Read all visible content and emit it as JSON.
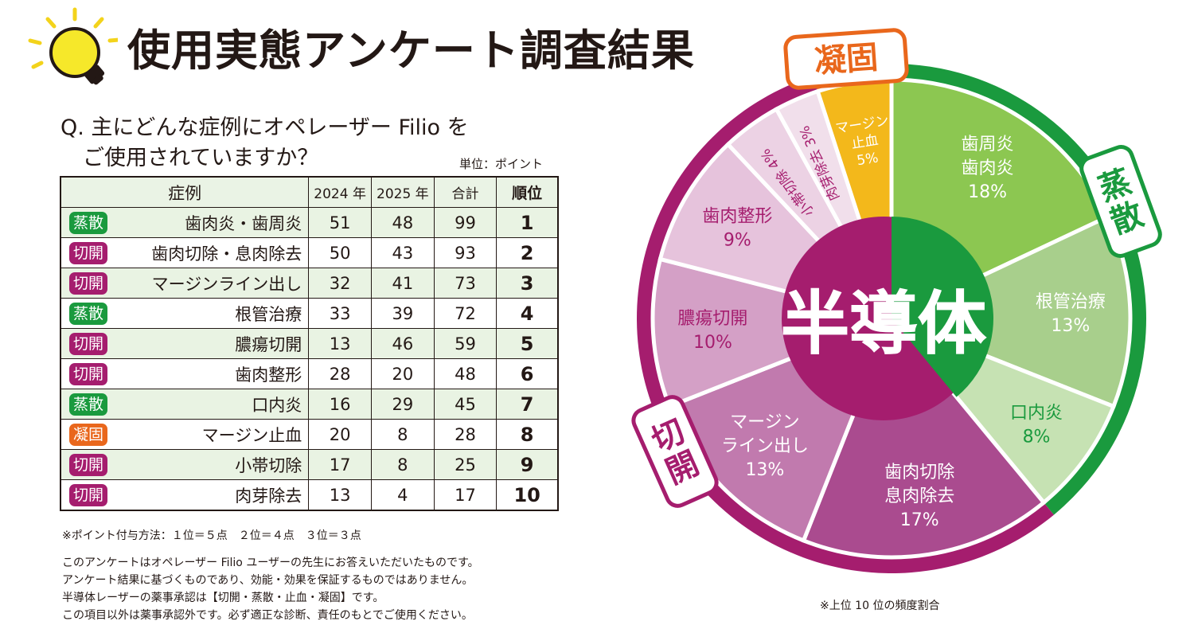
{
  "title": "使用実態アンケート調査結果",
  "question": [
    "Q. 主にどんな症例にオペレーザー Filio を",
    "ご使用されていますか？"
  ],
  "unit": "単位：ポイント",
  "table": {
    "headers": [
      "症例",
      "2024 年",
      "2025 年",
      "合計",
      "順位"
    ],
    "rows": [
      {
        "badge": "蒸散",
        "case": "歯肉炎・歯周炎",
        "y2024": "51",
        "y2025": "48",
        "total": "99",
        "rank": "1"
      },
      {
        "badge": "切開",
        "case": "歯肉切除・息肉除去",
        "y2024": "50",
        "y2025": "43",
        "total": "93",
        "rank": "2"
      },
      {
        "badge": "切開",
        "case": "マージンライン出し",
        "y2024": "32",
        "y2025": "41",
        "total": "73",
        "rank": "3"
      },
      {
        "badge": "蒸散",
        "case": "根管治療",
        "y2024": "33",
        "y2025": "39",
        "total": "72",
        "rank": "4"
      },
      {
        "badge": "切開",
        "case": "膿瘍切開",
        "y2024": "13",
        "y2025": "46",
        "total": "59",
        "rank": "5"
      },
      {
        "badge": "切開",
        "case": "歯肉整形",
        "y2024": "28",
        "y2025": "20",
        "total": "48",
        "rank": "6"
      },
      {
        "badge": "蒸散",
        "case": "口内炎",
        "y2024": "16",
        "y2025": "29",
        "total": "45",
        "rank": "7"
      },
      {
        "badge": "凝固",
        "case": "マージン止血",
        "y2024": "20",
        "y2025": "8",
        "total": "28",
        "rank": "8"
      },
      {
        "badge": "切開",
        "case": "小帯切除",
        "y2024": "17",
        "y2025": "8",
        "total": "25",
        "rank": "9"
      },
      {
        "badge": "切開",
        "case": "肉芽除去",
        "y2024": "13",
        "y2025": "4",
        "total": "17",
        "rank": "10"
      }
    ]
  },
  "note": "※ポイント付与方法：１位＝５点　２位＝４点　３位＝３点",
  "disclaimer": [
    "このアンケートはオペレーザー Filio ユーザーの先生にお答えいただいたものです。",
    "アンケート結果に基づくものであり、効能・効果を保証するものではありません。",
    "半導体レーザーの薬事承認は【切開・蒸散・止血・凝固】です。",
    "この項目以外は薬事承認外です。必ず適正な診断、責任のもとでご使用ください。"
  ],
  "footnote": "※上位 10 位の頻度割合",
  "colors": {
    "蒸散": "#1a9a3e",
    "切開": "#a51d6e",
    "凝固": "#e9671c",
    "text": "#231815"
  },
  "chart_data": {
    "type": "pie",
    "center_label": "半導体",
    "categories": [
      {
        "name": "蒸散",
        "color": "#1a9a3e"
      },
      {
        "name": "切開",
        "color": "#a51d6e"
      },
      {
        "name": "凝固",
        "color": "#e9671c"
      }
    ],
    "slices": [
      {
        "label": [
          "歯周炎",
          "歯肉炎"
        ],
        "value": 18,
        "pct": "18%",
        "category": "蒸散",
        "color": "#8cc751",
        "text_color": "#ffffff"
      },
      {
        "label": [
          "根管治療"
        ],
        "value": 13,
        "pct": "13%",
        "category": "蒸散",
        "color": "#a8cf8c",
        "text_color": "#ffffff"
      },
      {
        "label": [
          "口内炎"
        ],
        "value": 8,
        "pct": "8%",
        "category": "蒸散",
        "color": "#c6e2b3",
        "text_color": "#1a9a3e"
      },
      {
        "label": [
          "歯肉切除",
          "息肉除去"
        ],
        "value": 17,
        "pct": "17%",
        "category": "切開",
        "color": "#aa4b8f",
        "text_color": "#ffffff"
      },
      {
        "label": [
          "マージン",
          "ライン出し"
        ],
        "value": 13,
        "pct": "13%",
        "category": "切開",
        "color": "#c17aae",
        "text_color": "#ffffff"
      },
      {
        "label": [
          "膿瘍切開"
        ],
        "value": 10,
        "pct": "10%",
        "category": "切開",
        "color": "#d4a0c6",
        "text_color": "#a51d6e"
      },
      {
        "label": [
          "歯肉整形"
        ],
        "value": 9,
        "pct": "9%",
        "category": "切開",
        "color": "#e6c3dc",
        "text_color": "#a51d6e"
      },
      {
        "label": [
          "小帯切除"
        ],
        "value": 4,
        "pct": "4%",
        "category": "切開",
        "color": "#ecd2e4",
        "text_color": "#a51d6e"
      },
      {
        "label": [
          "肉芽除去"
        ],
        "value": 3,
        "pct": "3%",
        "category": "切開",
        "color": "#f1dfeb",
        "text_color": "#a51d6e"
      },
      {
        "label": [
          "マージン",
          "止血"
        ],
        "value": 5,
        "pct": "5%",
        "category": "凝固",
        "color": "#f3b81b",
        "text_color": "#ffffff"
      }
    ]
  }
}
